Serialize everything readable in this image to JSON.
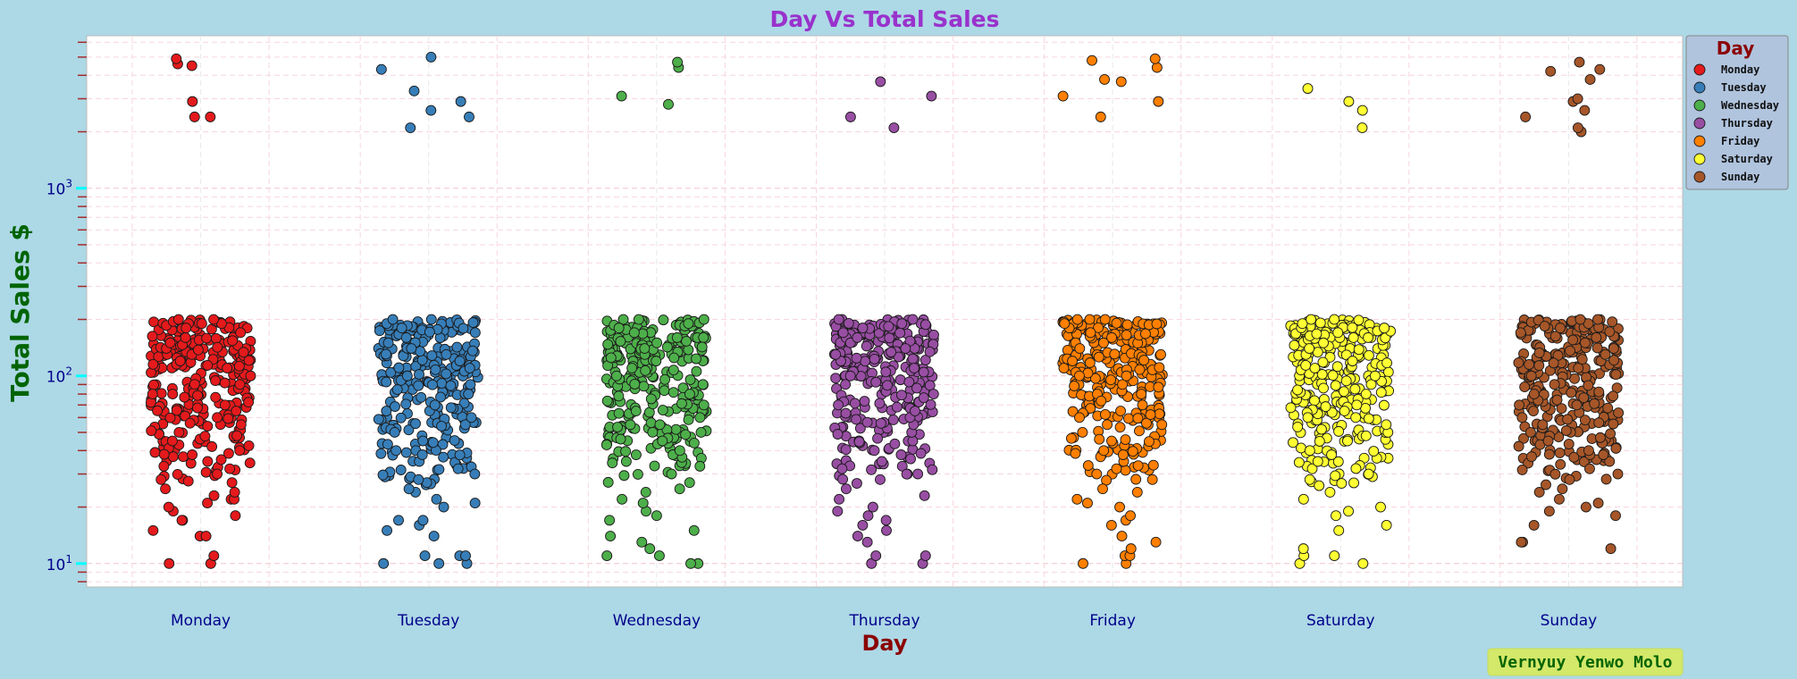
{
  "chart_data": {
    "type": "scatter",
    "subtype": "strip",
    "title": "Day Vs Total Sales",
    "xlabel": "Day",
    "ylabel": "Total Sales $",
    "yscale": "log",
    "ylim": [
      7.5,
      6500
    ],
    "y_ticks": [
      10,
      100,
      1000
    ],
    "y_tick_labels": {
      "10": "1",
      "100": "2",
      "1000": "3"
    },
    "y_tick_base": "10",
    "grid": true,
    "legend_title": "Day",
    "legend_position": "top-right",
    "categories": [
      "Monday",
      "Tuesday",
      "Wednesday",
      "Thursday",
      "Friday",
      "Saturday",
      "Sunday"
    ],
    "colors": {
      "Monday": "#e41a1c",
      "Tuesday": "#377eb8",
      "Wednesday": "#4daf4a",
      "Thursday": "#984ea3",
      "Friday": "#ff7f00",
      "Saturday": "#ffff33",
      "Sunday": "#a65628"
    },
    "series": [
      {
        "name": "Monday",
        "outliers": [
          2400,
          2900,
          2400,
          4500,
          4600,
          4900
        ],
        "main_points": [
          10,
          10,
          11,
          14,
          14,
          15,
          17,
          17,
          18,
          19,
          20,
          21,
          22,
          22,
          23,
          24,
          25,
          27,
          28,
          30,
          32,
          33,
          35,
          38,
          40,
          42,
          45,
          48,
          50,
          55,
          60,
          65,
          70,
          80,
          90,
          100,
          110,
          120,
          130,
          140,
          150,
          160,
          170,
          180,
          190,
          195,
          200,
          200
        ]
      },
      {
        "name": "Tuesday",
        "outliers": [
          2100,
          2400,
          2600,
          2900,
          3300,
          4300,
          5000
        ],
        "main_points": [
          10,
          10,
          10,
          11,
          11,
          11,
          14,
          15,
          16,
          17,
          17,
          20,
          21,
          22,
          24,
          25,
          27,
          28,
          30,
          32,
          35,
          38,
          40,
          45,
          50,
          55,
          60,
          65,
          70,
          80,
          90,
          100,
          110,
          120,
          130,
          140,
          150,
          160,
          170,
          180,
          190,
          200,
          200
        ]
      },
      {
        "name": "Wednesday",
        "outliers": [
          2800,
          3100,
          4400,
          4700
        ],
        "main_points": [
          10,
          10,
          11,
          11,
          12,
          13,
          14,
          15,
          17,
          18,
          19,
          21,
          22,
          24,
          25,
          27,
          30,
          33,
          35,
          38,
          40,
          45,
          50,
          55,
          60,
          65,
          70,
          80,
          90,
          100,
          110,
          120,
          130,
          140,
          150,
          160,
          170,
          180,
          190,
          200,
          200
        ]
      },
      {
        "name": "Thursday",
        "outliers": [
          2100,
          2400,
          3100,
          3700
        ],
        "main_points": [
          10,
          10,
          11,
          11,
          13,
          14,
          15,
          16,
          17,
          18,
          19,
          20,
          22,
          23,
          25,
          28,
          30,
          32,
          35,
          38,
          40,
          45,
          50,
          55,
          60,
          65,
          70,
          80,
          90,
          100,
          110,
          120,
          130,
          140,
          150,
          160,
          170,
          180,
          190,
          200,
          200
        ]
      },
      {
        "name": "Friday",
        "outliers": [
          2400,
          2900,
          3100,
          3700,
          3800,
          4400,
          4800,
          4900
        ],
        "main_points": [
          10,
          10,
          11,
          11,
          12,
          13,
          14,
          16,
          17,
          18,
          20,
          21,
          22,
          24,
          25,
          28,
          30,
          32,
          35,
          38,
          40,
          45,
          50,
          55,
          60,
          65,
          70,
          80,
          90,
          100,
          110,
          120,
          130,
          140,
          150,
          160,
          170,
          180,
          190,
          200,
          200
        ]
      },
      {
        "name": "Saturday",
        "outliers": [
          2100,
          2600,
          2900,
          3400
        ],
        "main_points": [
          10,
          10,
          11,
          11,
          12,
          15,
          16,
          18,
          19,
          20,
          22,
          24,
          26,
          28,
          30,
          32,
          35,
          38,
          40,
          45,
          50,
          55,
          60,
          65,
          70,
          80,
          90,
          100,
          110,
          120,
          130,
          140,
          150,
          160,
          170,
          180,
          190,
          200,
          200
        ]
      },
      {
        "name": "Sunday",
        "outliers": [
          2000,
          2100,
          2400,
          2600,
          2900,
          3000,
          3800,
          4200,
          4300,
          4700
        ],
        "main_points": [
          12,
          13,
          13,
          16,
          18,
          19,
          20,
          21,
          22,
          24,
          25,
          28,
          30,
          32,
          35,
          38,
          40,
          45,
          50,
          55,
          60,
          65,
          70,
          80,
          90,
          100,
          110,
          120,
          130,
          140,
          150,
          160,
          170,
          180,
          190,
          200,
          200
        ]
      }
    ]
  },
  "credit": "Vernyuy Yenwo Molo"
}
